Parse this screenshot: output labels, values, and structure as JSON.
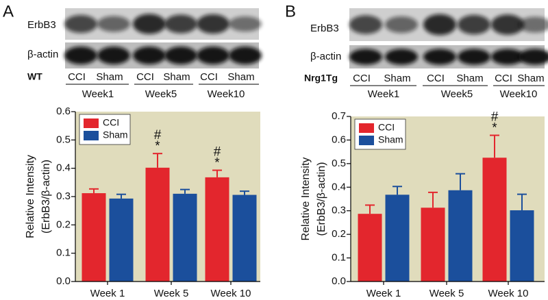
{
  "chart_data": [
    {
      "type": "bar",
      "panel": "A",
      "ylabel": [
        "Relative Intensity",
        "(ErbB3/β-actin)"
      ],
      "categories": [
        "Week 1",
        "Week 5",
        "Week 10"
      ],
      "series": [
        {
          "name": "CCI",
          "color": "#e3262d",
          "values": [
            0.312,
            0.402,
            0.368
          ],
          "errors": [
            0.015,
            0.05,
            0.025
          ]
        },
        {
          "name": "Sham",
          "color": "#1b4f9c",
          "values": [
            0.293,
            0.31,
            0.306
          ],
          "errors": [
            0.015,
            0.015,
            0.013
          ]
        }
      ],
      "ylim": [
        0,
        0.6
      ],
      "yticks": [
        {
          "value": 0,
          "label": "0.0"
        },
        0.1,
        0.2,
        0.3,
        0.4,
        0.5,
        0.6
      ],
      "legend": "upper left",
      "background": "#e0dcbc",
      "annotations": [
        {
          "series": 0,
          "category": 1,
          "labels": [
            "#",
            "*"
          ]
        },
        {
          "series": 0,
          "category": 2,
          "labels": [
            "#",
            "*"
          ]
        }
      ]
    },
    {
      "type": "bar",
      "panel": "B",
      "ylabel": [
        "Relative Intensity",
        "(ErbB3/β-actin)"
      ],
      "categories": [
        "Week 1",
        "Week 5",
        "Week 10"
      ],
      "series": [
        {
          "name": "CCI",
          "color": "#e3262d",
          "values": [
            0.287,
            0.313,
            0.525
          ],
          "errors": [
            0.037,
            0.065,
            0.095
          ]
        },
        {
          "name": "Sham",
          "color": "#1b4f9c",
          "values": [
            0.368,
            0.387,
            0.302
          ],
          "errors": [
            0.035,
            0.07,
            0.068
          ]
        }
      ],
      "ylim": [
        0,
        0.7
      ],
      "yticks": [
        {
          "value": 0,
          "label": "0.0"
        },
        0.1,
        0.2,
        0.3,
        0.4,
        0.5,
        0.6,
        0.7
      ],
      "legend": "upper left",
      "background": "#e0dcbc",
      "annotations": [
        {
          "series": 0,
          "category": 2,
          "labels": [
            "#",
            "*"
          ]
        }
      ]
    }
  ],
  "blots": [
    {
      "rows": [
        "ErbB3",
        "β-actin"
      ],
      "strain": "WT",
      "lanes": [
        "CCI",
        "Sham",
        "CCI",
        "Sham",
        "CCI",
        "Sham"
      ],
      "weeks": [
        "Week1",
        "Week5",
        "Week10"
      ]
    },
    {
      "rows": [
        "ErbB3",
        "β-actin"
      ],
      "strain": "Nrg1Tg",
      "lanes": [
        "CCI",
        "Sham",
        "CCI",
        "Sham",
        "CCI",
        "Sham"
      ],
      "weeks": [
        "Week1",
        "Week5",
        "Week10"
      ]
    }
  ]
}
